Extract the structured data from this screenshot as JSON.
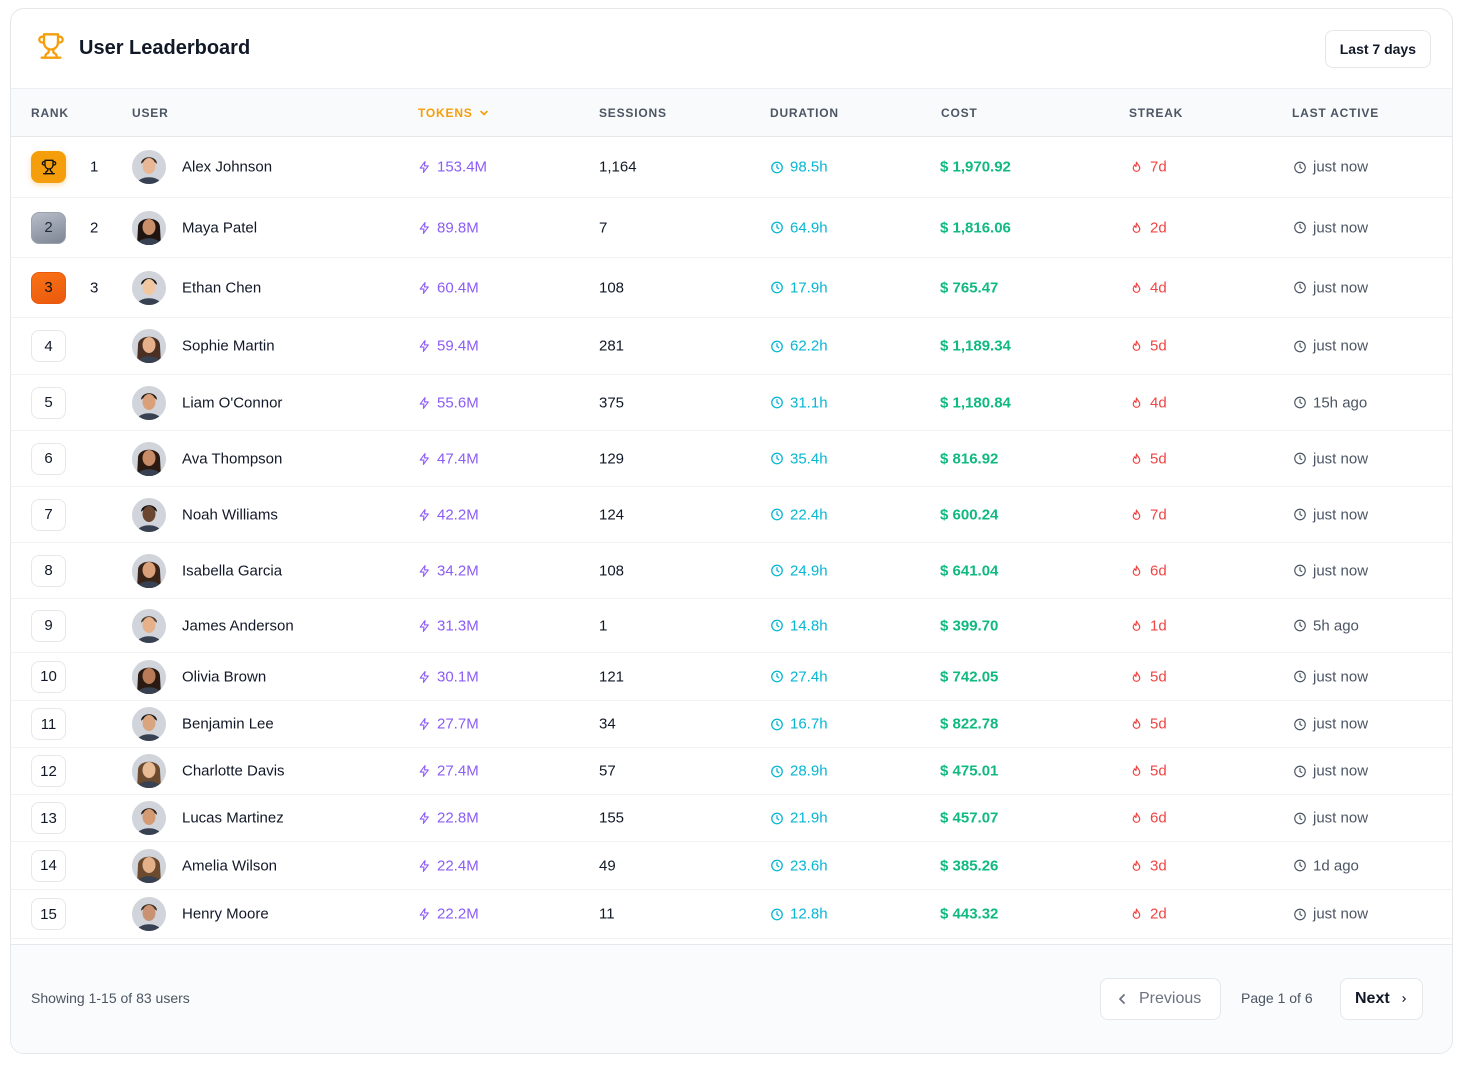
{
  "header": {
    "title": "User Leaderboard",
    "period_label": "Last 7 days",
    "icon": "trophy-icon"
  },
  "columns": {
    "rank": "RANK",
    "user": "USER",
    "tokens": "TOKENS",
    "sessions": "SESSIONS",
    "duration": "DURATION",
    "cost": "COST",
    "streak": "STREAK",
    "last_active": "LAST ACTIVE"
  },
  "sorted_column": "tokens",
  "colors": {
    "accent": "#f59e0b",
    "tokens": "#8b5cf6",
    "duration": "#06b6d4",
    "cost": "#10b981",
    "streak": "#ef4444"
  },
  "rows": [
    {
      "rank": "1",
      "name": "Alex Johnson",
      "tokens": "153.4M",
      "sessions": "1,164",
      "duration": "98.5h",
      "cost": "$ 1,970.92",
      "streak": "7d",
      "last_active": "just now",
      "medal": "gold"
    },
    {
      "rank": "2",
      "name": "Maya Patel",
      "tokens": "89.8M",
      "sessions": "7",
      "duration": "64.9h",
      "cost": "$ 1,816.06",
      "streak": "2d",
      "last_active": "just now",
      "medal": "silver"
    },
    {
      "rank": "3",
      "name": "Ethan Chen",
      "tokens": "60.4M",
      "sessions": "108",
      "duration": "17.9h",
      "cost": "$ 765.47",
      "streak": "4d",
      "last_active": "just now",
      "medal": "bronze"
    },
    {
      "rank": "4",
      "name": "Sophie Martin",
      "tokens": "59.4M",
      "sessions": "281",
      "duration": "62.2h",
      "cost": "$ 1,189.34",
      "streak": "5d",
      "last_active": "just now"
    },
    {
      "rank": "5",
      "name": "Liam O'Connor",
      "tokens": "55.6M",
      "sessions": "375",
      "duration": "31.1h",
      "cost": "$ 1,180.84",
      "streak": "4d",
      "last_active": "15h ago"
    },
    {
      "rank": "6",
      "name": "Ava Thompson",
      "tokens": "47.4M",
      "sessions": "129",
      "duration": "35.4h",
      "cost": "$ 816.92",
      "streak": "5d",
      "last_active": "just now"
    },
    {
      "rank": "7",
      "name": "Noah Williams",
      "tokens": "42.2M",
      "sessions": "124",
      "duration": "22.4h",
      "cost": "$ 600.24",
      "streak": "7d",
      "last_active": "just now"
    },
    {
      "rank": "8",
      "name": "Isabella Garcia",
      "tokens": "34.2M",
      "sessions": "108",
      "duration": "24.9h",
      "cost": "$ 641.04",
      "streak": "6d",
      "last_active": "just now"
    },
    {
      "rank": "9",
      "name": "James Anderson",
      "tokens": "31.3M",
      "sessions": "1",
      "duration": "14.8h",
      "cost": "$ 399.70",
      "streak": "1d",
      "last_active": "5h ago"
    },
    {
      "rank": "10",
      "name": "Olivia Brown",
      "tokens": "30.1M",
      "sessions": "121",
      "duration": "27.4h",
      "cost": "$ 742.05",
      "streak": "5d",
      "last_active": "just now"
    },
    {
      "rank": "11",
      "name": "Benjamin Lee",
      "tokens": "27.7M",
      "sessions": "34",
      "duration": "16.7h",
      "cost": "$ 822.78",
      "streak": "5d",
      "last_active": "just now"
    },
    {
      "rank": "12",
      "name": "Charlotte Davis",
      "tokens": "27.4M",
      "sessions": "57",
      "duration": "28.9h",
      "cost": "$ 475.01",
      "streak": "5d",
      "last_active": "just now"
    },
    {
      "rank": "13",
      "name": "Lucas Martinez",
      "tokens": "22.8M",
      "sessions": "155",
      "duration": "21.9h",
      "cost": "$ 457.07",
      "streak": "6d",
      "last_active": "just now"
    },
    {
      "rank": "14",
      "name": "Amelia Wilson",
      "tokens": "22.4M",
      "sessions": "49",
      "duration": "23.6h",
      "cost": "$ 385.26",
      "streak": "3d",
      "last_active": "1d ago"
    },
    {
      "rank": "15",
      "name": "Henry Moore",
      "tokens": "22.2M",
      "sessions": "11",
      "duration": "12.8h",
      "cost": "$ 443.32",
      "streak": "2d",
      "last_active": "just now"
    }
  ],
  "footer": {
    "showing": "Showing 1-15 of 83 users",
    "previous": "Previous",
    "page_info": "Page 1 of 6",
    "next": "Next"
  }
}
